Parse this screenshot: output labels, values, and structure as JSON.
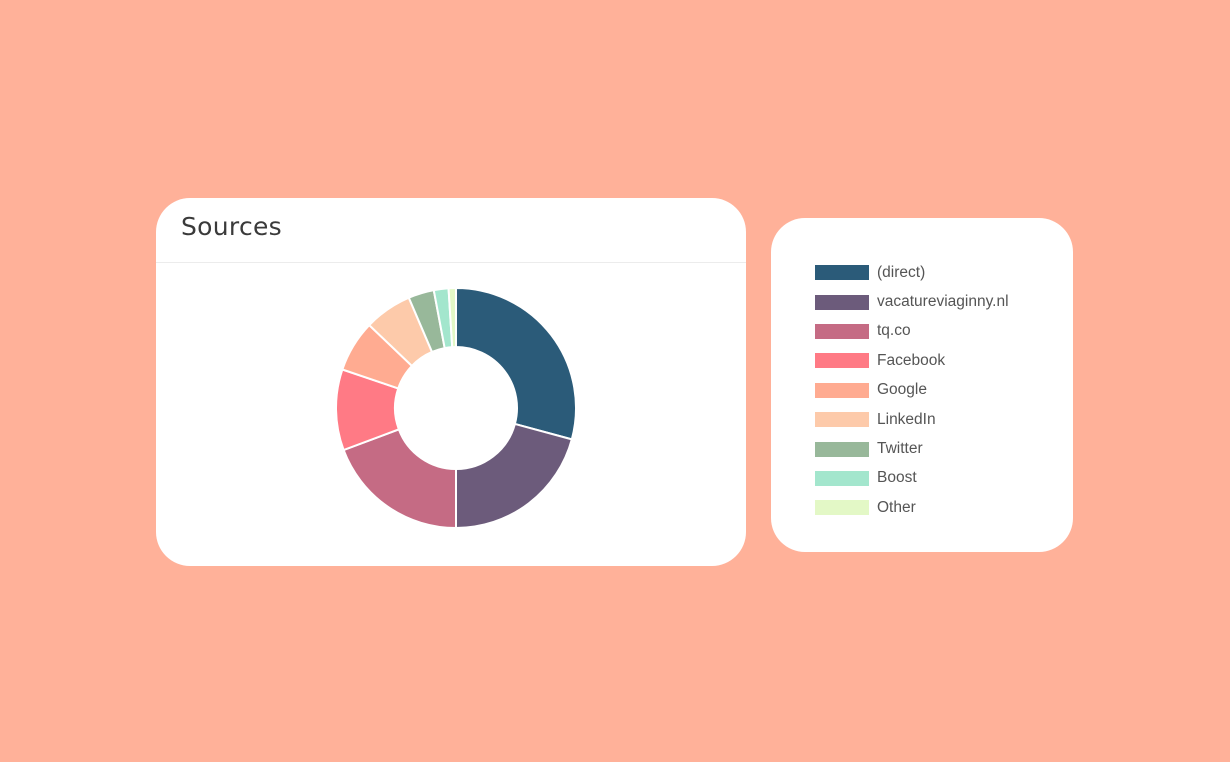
{
  "panel": {
    "title": "Sources"
  },
  "chart_data": {
    "type": "pie",
    "donut": true,
    "title": "Sources",
    "categories": [
      "(direct)",
      "vacatureviaginny.nl",
      "tq.co",
      "Facebook",
      "Google",
      "LinkedIn",
      "Twitter",
      "Boost",
      "Other"
    ],
    "values": [
      29.5,
      21,
      19.5,
      11,
      7,
      6.5,
      3.5,
      2,
      1
    ],
    "colors": [
      "#2b5b79",
      "#6c5b7b",
      "#c56b84",
      "#ff7a85",
      "#ffab91",
      "#fdcaaa",
      "#98b89a",
      "#a3e6cd",
      "#e3f8c6"
    ],
    "legend_position": "right"
  },
  "legend": {
    "items": [
      {
        "label": "(direct)",
        "color": "#2b5b79"
      },
      {
        "label": "vacatureviaginny.nl",
        "color": "#6c5b7b"
      },
      {
        "label": "tq.co",
        "color": "#c56b84"
      },
      {
        "label": "Facebook",
        "color": "#ff7a85"
      },
      {
        "label": "Google",
        "color": "#ffab91"
      },
      {
        "label": "LinkedIn",
        "color": "#fdcaaa"
      },
      {
        "label": "Twitter",
        "color": "#98b89a"
      },
      {
        "label": "Boost",
        "color": "#a3e6cd"
      },
      {
        "label": "Other",
        "color": "#e3f8c6"
      }
    ]
  }
}
